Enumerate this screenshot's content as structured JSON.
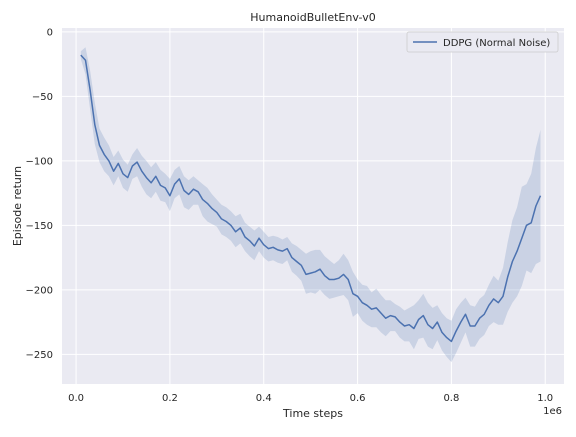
{
  "chart_data": {
    "type": "line",
    "title": "HumanoidBulletEnv-v0",
    "xlabel": "Time steps",
    "ylabel": "Episode return",
    "x_offset_label": "1e6",
    "xlim": [
      -0.03,
      1.04
    ],
    "ylim": [
      -273,
      3
    ],
    "xticks": [
      0.0,
      0.2,
      0.4,
      0.6,
      0.8,
      1.0
    ],
    "xtick_labels": [
      "0.0",
      "0.2",
      "0.4",
      "0.6",
      "0.8",
      "1.0"
    ],
    "yticks": [
      0,
      -50,
      -100,
      -150,
      -200,
      -250
    ],
    "ytick_labels": [
      "0",
      "−50",
      "−100",
      "−150",
      "−200",
      "−250"
    ],
    "grid": true,
    "legend_position": "top-right",
    "background": "#eaeaf2",
    "series": [
      {
        "name": "DDPG (Normal Noise)",
        "color": "#4c72b0",
        "x": [
          0.01,
          0.02,
          0.03,
          0.04,
          0.05,
          0.06,
          0.07,
          0.08,
          0.09,
          0.1,
          0.11,
          0.12,
          0.13,
          0.14,
          0.15,
          0.16,
          0.17,
          0.18,
          0.19,
          0.2,
          0.21,
          0.22,
          0.23,
          0.24,
          0.25,
          0.26,
          0.27,
          0.28,
          0.29,
          0.3,
          0.31,
          0.32,
          0.33,
          0.34,
          0.35,
          0.36,
          0.37,
          0.38,
          0.39,
          0.4,
          0.41,
          0.42,
          0.43,
          0.44,
          0.45,
          0.46,
          0.47,
          0.48,
          0.49,
          0.5,
          0.51,
          0.52,
          0.53,
          0.54,
          0.55,
          0.56,
          0.57,
          0.58,
          0.59,
          0.6,
          0.61,
          0.62,
          0.63,
          0.64,
          0.65,
          0.66,
          0.67,
          0.68,
          0.69,
          0.7,
          0.71,
          0.72,
          0.73,
          0.74,
          0.75,
          0.76,
          0.77,
          0.78,
          0.79,
          0.8,
          0.81,
          0.82,
          0.83,
          0.84,
          0.85,
          0.86,
          0.87,
          0.88,
          0.89,
          0.9,
          0.91,
          0.92,
          0.93,
          0.94,
          0.95,
          0.96,
          0.97,
          0.98,
          0.99
        ],
        "y": [
          -18,
          -22,
          -45,
          -72,
          -88,
          -95,
          -100,
          -108,
          -102,
          -110,
          -113,
          -104,
          -101,
          -108,
          -113,
          -117,
          -112,
          -119,
          -121,
          -127,
          -118,
          -114,
          -123,
          -126,
          -122,
          -124,
          -130,
          -133,
          -137,
          -140,
          -145,
          -147,
          -150,
          -155,
          -152,
          -159,
          -162,
          -166,
          -160,
          -165,
          -168,
          -167,
          -169,
          -170,
          -168,
          -175,
          -178,
          -181,
          -188,
          -187,
          -186,
          -184,
          -189,
          -192,
          -192,
          -191,
          -188,
          -192,
          -203,
          -205,
          -210,
          -212,
          -215,
          -214,
          -218,
          -222,
          -220,
          -221,
          -225,
          -228,
          -227,
          -230,
          -223,
          -220,
          -227,
          -230,
          -225,
          -233,
          -237,
          -240,
          -232,
          -225,
          -219,
          -228,
          -228,
          -222,
          -219,
          -212,
          -207,
          -210,
          -205,
          -190,
          -178,
          -170,
          -160,
          -150,
          -148,
          -135,
          -127
        ],
        "band_upper": [
          -15,
          -12,
          -30,
          -55,
          -75,
          -82,
          -88,
          -97,
          -92,
          -99,
          -103,
          -95,
          -90,
          -96,
          -100,
          -105,
          -101,
          -107,
          -110,
          -114,
          -107,
          -104,
          -112,
          -115,
          -112,
          -115,
          -118,
          -121,
          -126,
          -130,
          -134,
          -136,
          -139,
          -143,
          -141,
          -148,
          -151,
          -154,
          -151,
          -155,
          -159,
          -158,
          -159,
          -161,
          -159,
          -164,
          -166,
          -169,
          -172,
          -170,
          -169,
          -169,
          -174,
          -177,
          -180,
          -177,
          -172,
          -177,
          -186,
          -192,
          -196,
          -197,
          -202,
          -199,
          -204,
          -208,
          -208,
          -211,
          -213,
          -216,
          -214,
          -212,
          -208,
          -203,
          -210,
          -214,
          -212,
          -218,
          -222,
          -224,
          -215,
          -210,
          -206,
          -212,
          -213,
          -207,
          -204,
          -196,
          -189,
          -193,
          -183,
          -163,
          -146,
          -136,
          -120,
          -118,
          -110,
          -90,
          -76
        ],
        "band_lower": [
          -21,
          -33,
          -60,
          -87,
          -101,
          -108,
          -112,
          -119,
          -112,
          -121,
          -124,
          -114,
          -112,
          -120,
          -126,
          -129,
          -124,
          -131,
          -132,
          -139,
          -129,
          -126,
          -136,
          -138,
          -134,
          -134,
          -143,
          -147,
          -149,
          -151,
          -157,
          -159,
          -162,
          -167,
          -164,
          -170,
          -174,
          -177,
          -170,
          -175,
          -178,
          -177,
          -179,
          -180,
          -177,
          -186,
          -189,
          -193,
          -203,
          -202,
          -203,
          -200,
          -204,
          -207,
          -206,
          -205,
          -204,
          -208,
          -221,
          -218,
          -224,
          -227,
          -229,
          -229,
          -233,
          -236,
          -232,
          -232,
          -237,
          -240,
          -240,
          -246,
          -238,
          -237,
          -244,
          -246,
          -239,
          -247,
          -252,
          -256,
          -249,
          -241,
          -233,
          -244,
          -244,
          -238,
          -235,
          -228,
          -225,
          -227,
          -227,
          -217,
          -210,
          -205,
          -197,
          -185,
          -187,
          -180,
          -178
        ]
      }
    ]
  }
}
